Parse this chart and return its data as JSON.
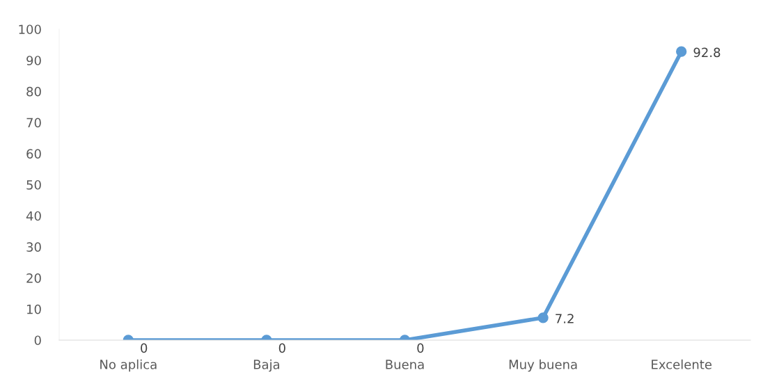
{
  "chart_data": {
    "type": "line",
    "categories": [
      "No aplica",
      "Baja",
      "Buena",
      "Muy buena",
      "Excelente"
    ],
    "series": [
      {
        "color": "#5b9bd5",
        "values": [
          0,
          0,
          0,
          7.2,
          92.8
        ]
      }
    ],
    "ylim": [
      0,
      100
    ],
    "yticks": [
      0,
      10,
      20,
      30,
      40,
      50,
      60,
      70,
      80,
      90,
      100
    ],
    "grid": false,
    "marker": "circle",
    "line_style": "solid",
    "data_labels": true
  }
}
